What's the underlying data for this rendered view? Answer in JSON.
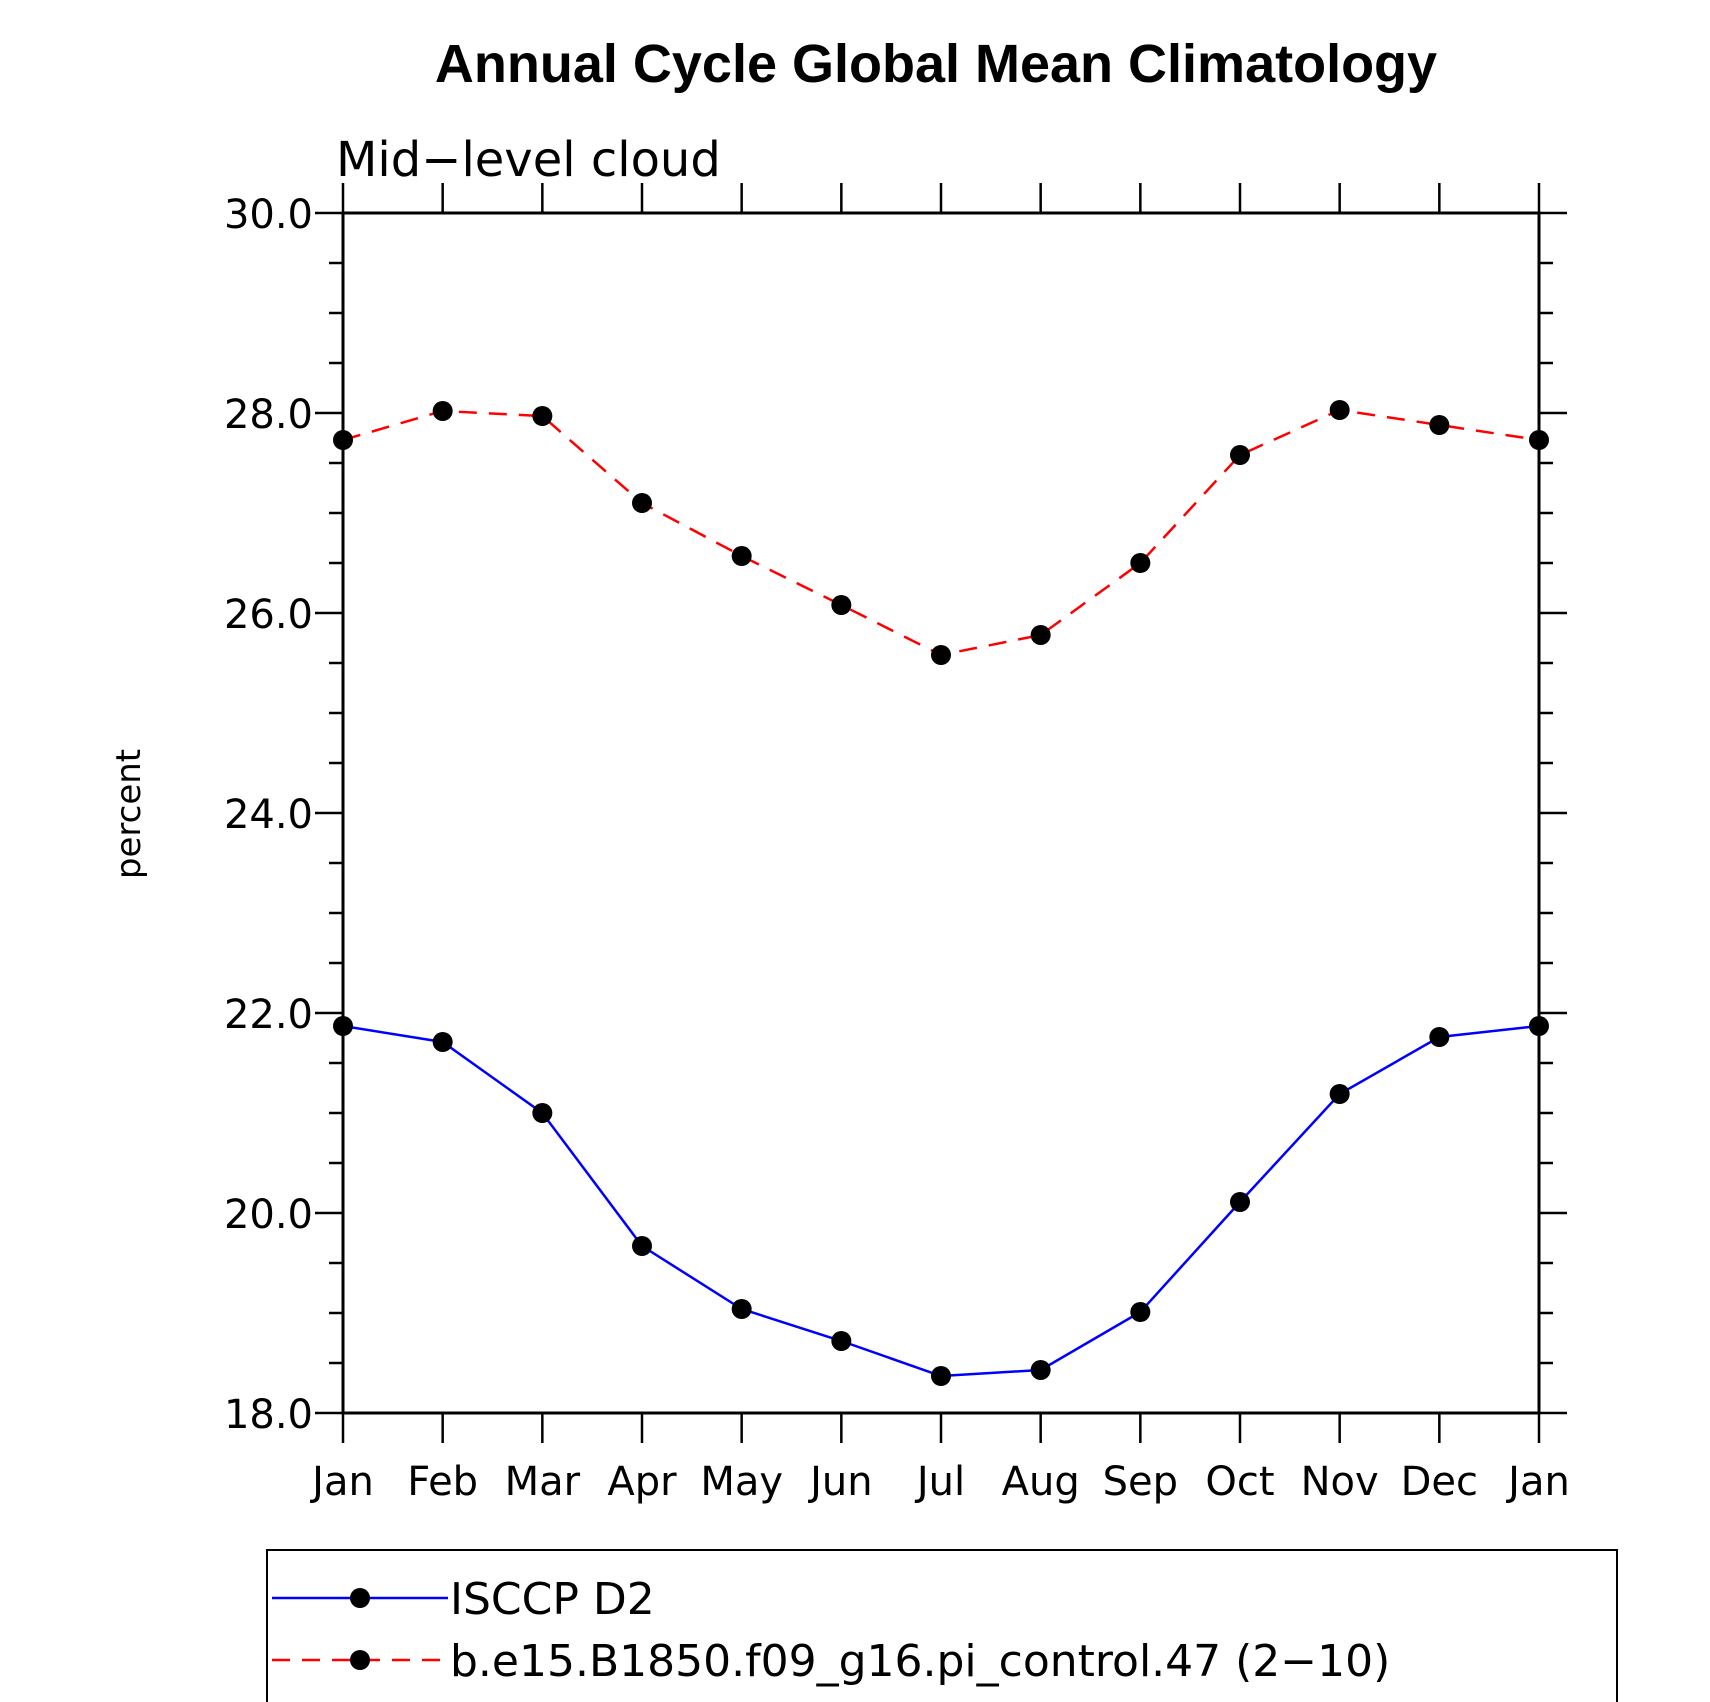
{
  "chart_data": {
    "type": "line",
    "title": "Annual Cycle Global Mean Climatology",
    "subtitle": "Mid−level cloud",
    "ylabel": "percent",
    "xlabel": "",
    "ylim": [
      18.0,
      30.0
    ],
    "y_ticks": [
      "18.0",
      "20.0",
      "22.0",
      "24.0",
      "26.0",
      "28.0",
      "30.0"
    ],
    "categories": [
      "Jan",
      "Feb",
      "Mar",
      "Apr",
      "May",
      "Jun",
      "Jul",
      "Aug",
      "Sep",
      "Oct",
      "Nov",
      "Dec",
      "Jan"
    ],
    "series": [
      {
        "name": "ISCCP D2",
        "color": "#0000ff",
        "dash": "solid",
        "marker": "filled-circle",
        "values": [
          21.87,
          21.71,
          21.0,
          19.67,
          19.04,
          18.72,
          18.37,
          18.43,
          19.01,
          20.11,
          21.19,
          21.76,
          21.87
        ]
      },
      {
        "name": "b.e15.B1850.f09_g16.pi_control.47 (2−10)",
        "color": "#ff0000",
        "dash": "dashed",
        "marker": "filled-circle",
        "values": [
          27.73,
          28.02,
          27.97,
          27.1,
          26.57,
          26.08,
          25.58,
          25.78,
          26.5,
          27.58,
          28.03,
          27.88,
          27.73
        ]
      }
    ],
    "legend_position": "bottom"
  }
}
